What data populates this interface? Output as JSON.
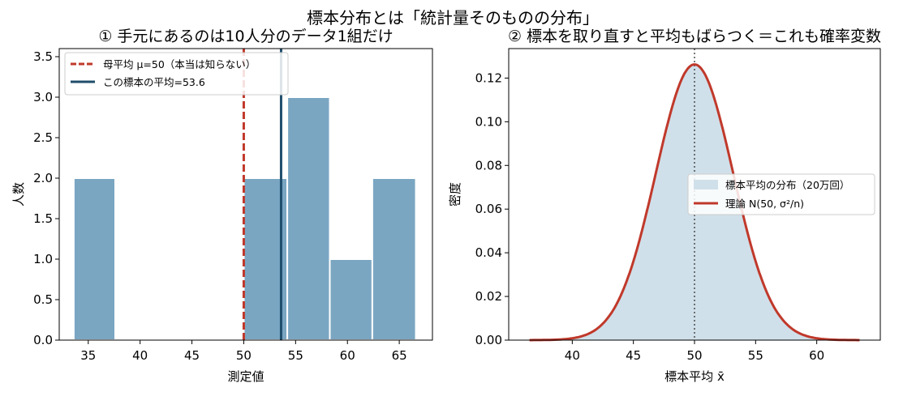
{
  "suptitle": "標本分布とは「統計量そのものの分布」",
  "chart_data": [
    {
      "type": "bar",
      "title": "① 手元にあるのは10人分のデータ1組だけ",
      "xlabel": "測定値",
      "ylabel": "人数",
      "xlim": [
        32.2,
        68.2
      ],
      "ylim": [
        0,
        3.6
      ],
      "xticks": [
        35,
        40,
        45,
        50,
        55,
        60,
        65
      ],
      "yticks": [
        0.0,
        0.5,
        1.0,
        1.5,
        2.0,
        2.5,
        3.0,
        3.5
      ],
      "bar_color": "#7aa6c2",
      "bars": [
        {
          "x0": 33.6,
          "x1": 37.6,
          "count": 2
        },
        {
          "x0": 37.6,
          "x1": 41.6,
          "count": 0
        },
        {
          "x0": 41.6,
          "x1": 45.6,
          "count": 0
        },
        {
          "x0": 45.6,
          "x1": 50.0,
          "count": 0
        },
        {
          "x0": 50.0,
          "x1": 54.2,
          "count": 2
        },
        {
          "x0": 54.2,
          "x1": 58.3,
          "count": 3
        },
        {
          "x0": 58.3,
          "x1": 62.4,
          "count": 1
        },
        {
          "x0": 62.4,
          "x1": 66.6,
          "count": 2
        }
      ],
      "vlines": [
        {
          "x": 50,
          "label": "母平均 μ=50（本当は知らない）",
          "color": "#c0392b",
          "style": "dashed"
        },
        {
          "x": 53.6,
          "label": "この標本の平均=53.6",
          "color": "#1f4e6b",
          "style": "solid"
        }
      ],
      "legend": "top-left"
    },
    {
      "type": "area",
      "title": "② 標本を取り直すと平均もばらつく＝これも確率変数",
      "xlabel": "標本平均 x̄",
      "ylabel": "密度",
      "xlim": [
        34.8,
        65.2
      ],
      "ylim": [
        0,
        0.1335
      ],
      "xticks": [
        40,
        45,
        50,
        55,
        60
      ],
      "yticks": [
        0.0,
        0.02,
        0.04,
        0.06,
        0.08,
        0.1,
        0.12
      ],
      "distribution": {
        "mean": 50,
        "sd": 3.16,
        "x_range": [
          36.5,
          63.5
        ]
      },
      "series": [
        {
          "name": "標本平均の分布（20万回）",
          "kind": "histogram",
          "color": "#d0e0ea"
        },
        {
          "name": "理論 N(50, σ²/n)",
          "kind": "line",
          "color": "#c0392b"
        }
      ],
      "vlines": [
        {
          "x": 50,
          "color": "#333333",
          "style": "dotted"
        }
      ],
      "legend": "center-right"
    }
  ]
}
